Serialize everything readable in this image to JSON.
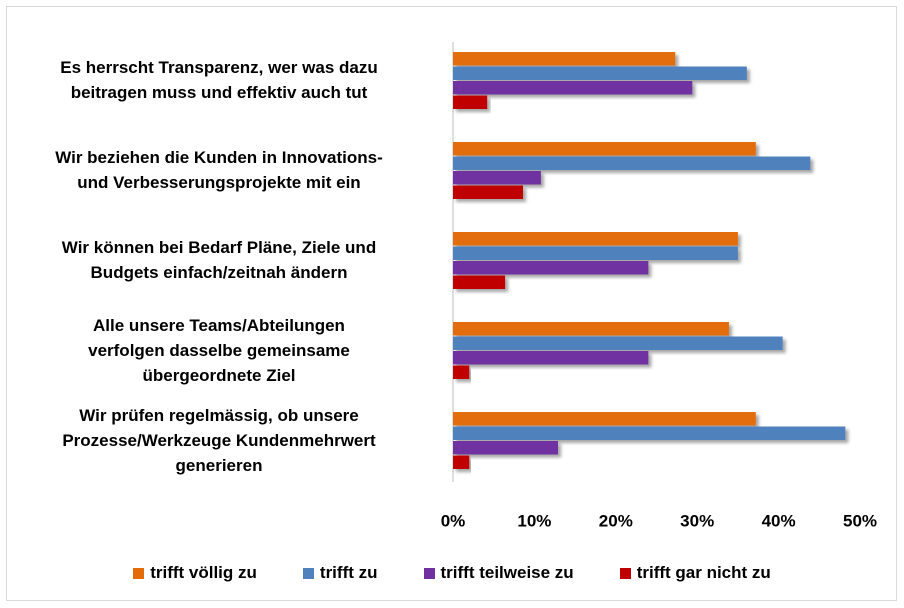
{
  "chart_data": {
    "type": "bar",
    "orientation": "horizontal",
    "categories": [
      "Es herrscht Transparenz, wer was dazu\nbeitragen muss und effektiv auch tut",
      "Wir beziehen die Kunden in Innovations-\nund Verbesserungsprojekte mit ein",
      "Wir können bei Bedarf Pläne, Ziele und\nBudgets einfach/zeitnah ändern",
      "Alle unsere Teams/Abteilungen\nverfolgen dasselbe gemeinsame\nübergeordnete Ziel",
      "Wir prüfen regelmässig, ob unsere\nProzesse/Werkzeuge Kundenmehrwert\ngenerieren"
    ],
    "series": [
      {
        "name": "trifft völlig zu",
        "color": "#e36c09",
        "values": [
          27.3,
          37.2,
          35.0,
          33.9,
          37.2
        ]
      },
      {
        "name": "trifft zu",
        "color": "#4f81bd",
        "values": [
          36.1,
          43.9,
          35.0,
          40.5,
          48.2
        ]
      },
      {
        "name": "trifft teilweise zu",
        "color": "#7030a0",
        "values": [
          29.4,
          10.8,
          24.0,
          24.0,
          12.9
        ]
      },
      {
        "name": "trifft gar nicht zu",
        "color": "#c00000",
        "values": [
          4.2,
          8.6,
          6.4,
          2.0,
          2.0
        ]
      }
    ],
    "xlim": [
      0,
      50
    ],
    "xticks": [
      {
        "value": 0,
        "label": "0%"
      },
      {
        "value": 10,
        "label": "10%"
      },
      {
        "value": 20,
        "label": "20%"
      },
      {
        "value": 30,
        "label": "30%"
      },
      {
        "value": 40,
        "label": "40%"
      },
      {
        "value": 50,
        "label": "50%"
      }
    ],
    "grid": false,
    "legend": "bottom"
  }
}
